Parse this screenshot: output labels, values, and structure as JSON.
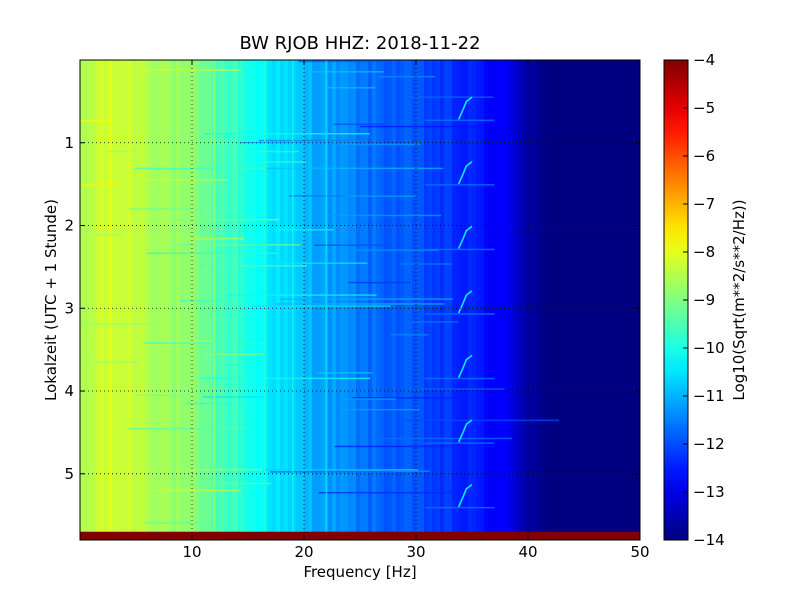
{
  "chart_data": {
    "type": "heatmap",
    "title": "BW RJOB HHZ: 2018-11-22",
    "xlabel": "Frequency [Hz]",
    "ylabel": "Lokalzeit (UTC + 1 Stunde)",
    "xlim": [
      0,
      50
    ],
    "ylim": [
      5.8,
      0
    ],
    "xticks": [
      10,
      20,
      30,
      40,
      50
    ],
    "yticks": [
      1,
      2,
      3,
      4,
      5
    ],
    "grid": true,
    "colorbar": {
      "label": "Log10(Sqrt(m**2/s**2/Hz))",
      "range": [
        -14,
        -4
      ],
      "ticks": [
        -4,
        -5,
        -6,
        -7,
        -8,
        -9,
        -10,
        -11,
        -12,
        -13,
        -14
      ],
      "colormap": "jet"
    },
    "profile": {
      "frequency_hz": [
        0,
        2,
        5,
        8,
        10,
        13,
        16,
        18,
        20,
        23,
        26,
        30,
        33,
        36,
        38,
        39,
        40,
        41,
        42,
        50
      ],
      "log10_amplitude": [
        -8.7,
        -8.2,
        -8.3,
        -8.7,
        -9.0,
        -9.6,
        -10.2,
        -10.6,
        -10.9,
        -11.3,
        -11.7,
        -12.0,
        -12.3,
        -12.6,
        -12.9,
        -13.2,
        -13.6,
        -13.85,
        -14.0,
        -14.0
      ]
    },
    "bright_lines_hz": [
      10,
      12,
      14,
      16.5,
      19,
      22
    ],
    "drift_line_hz": [
      33.8,
      35.0
    ],
    "saturated_band": {
      "time_start": 5.7,
      "time_end": 5.8,
      "value": -4
    }
  }
}
